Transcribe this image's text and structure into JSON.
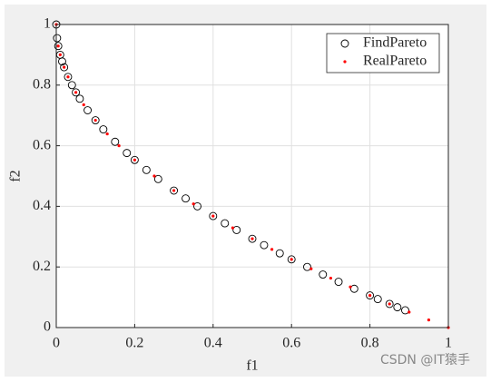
{
  "chart_data": {
    "type": "scatter",
    "xlabel": "f1",
    "ylabel": "f2",
    "xlim": [
      0,
      1
    ],
    "ylim": [
      0,
      1
    ],
    "xticks": [
      0,
      0.2,
      0.4,
      0.6,
      0.8,
      1
    ],
    "yticks": [
      0,
      0.2,
      0.4,
      0.6,
      0.8,
      1
    ],
    "grid": true,
    "legend": "top-right",
    "series": [
      {
        "name": "FindPareto",
        "color": "#000000",
        "marker": "circle",
        "x": [
          0,
          0.002,
          0.005,
          0.01,
          0.015,
          0.02,
          0.03,
          0.04,
          0.05,
          0.06,
          0.08,
          0.1,
          0.12,
          0.15,
          0.18,
          0.2,
          0.23,
          0.26,
          0.3,
          0.33,
          0.36,
          0.4,
          0.43,
          0.46,
          0.5,
          0.53,
          0.57,
          0.6,
          0.64,
          0.68,
          0.72,
          0.76,
          0.8,
          0.82,
          0.85,
          0.87,
          0.89
        ],
        "y": [
          1,
          0.955,
          0.929,
          0.9,
          0.878,
          0.859,
          0.827,
          0.8,
          0.776,
          0.755,
          0.717,
          0.684,
          0.654,
          0.613,
          0.576,
          0.553,
          0.52,
          0.49,
          0.452,
          0.426,
          0.4,
          0.368,
          0.344,
          0.322,
          0.293,
          0.272,
          0.245,
          0.225,
          0.2,
          0.175,
          0.151,
          0.128,
          0.106,
          0.094,
          0.078,
          0.067,
          0.057
        ]
      },
      {
        "name": "RealPareto",
        "color": "#ff0000",
        "marker": "dot",
        "x": [
          0,
          0.005,
          0.01,
          0.02,
          0.03,
          0.05,
          0.07,
          0.1,
          0.13,
          0.16,
          0.2,
          0.25,
          0.3,
          0.35,
          0.4,
          0.45,
          0.5,
          0.55,
          0.6,
          0.65,
          0.7,
          0.75,
          0.8,
          0.85,
          0.9,
          0.95,
          1
        ],
        "y": [
          1,
          0.929,
          0.9,
          0.859,
          0.827,
          0.776,
          0.735,
          0.684,
          0.639,
          0.6,
          0.553,
          0.5,
          0.452,
          0.408,
          0.368,
          0.329,
          0.293,
          0.258,
          0.225,
          0.194,
          0.163,
          0.134,
          0.106,
          0.078,
          0.051,
          0.025,
          0
        ]
      }
    ]
  },
  "watermark": "CSDN @IT猿手"
}
